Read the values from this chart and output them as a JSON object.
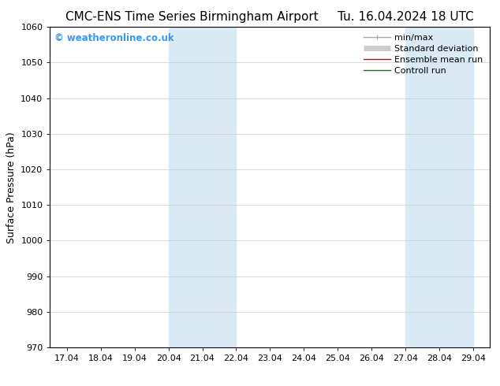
{
  "title_left": "CMC-ENS Time Series Birmingham Airport",
  "title_right": "Tu. 16.04.2024 18 UTC",
  "ylabel": "Surface Pressure (hPa)",
  "xlabel": "",
  "ylim": [
    970,
    1060
  ],
  "yticks": [
    970,
    980,
    990,
    1000,
    1010,
    1020,
    1030,
    1040,
    1050,
    1060
  ],
  "xtick_labels": [
    "17.04",
    "18.04",
    "19.04",
    "20.04",
    "21.04",
    "22.04",
    "23.04",
    "24.04",
    "25.04",
    "26.04",
    "27.04",
    "28.04",
    "29.04"
  ],
  "xtick_values": [
    0,
    1,
    2,
    3,
    4,
    5,
    6,
    7,
    8,
    9,
    10,
    11,
    12
  ],
  "xlim": [
    -0.5,
    12.5
  ],
  "shaded_regions": [
    {
      "x_start": 3,
      "x_end": 5,
      "color": "#daeaf5"
    },
    {
      "x_start": 10,
      "x_end": 12,
      "color": "#daeaf5"
    }
  ],
  "watermark": "© weatheronline.co.uk",
  "watermark_color": "#3399ff",
  "legend_entries": [
    {
      "label": "min/max",
      "color": "#aaaaaa",
      "linestyle": "-",
      "linewidth": 1.0
    },
    {
      "label": "Standard deviation",
      "color": "#cccccc",
      "linestyle": "-",
      "linewidth": 5
    },
    {
      "label": "Ensemble mean run",
      "color": "#dd0000",
      "linestyle": "-",
      "linewidth": 1.0
    },
    {
      "label": "Controll run",
      "color": "#008800",
      "linestyle": "-",
      "linewidth": 1.0
    }
  ],
  "background_color": "#ffffff",
  "grid_color": "#cccccc",
  "title_fontsize": 11,
  "tick_fontsize": 8,
  "ylabel_fontsize": 9,
  "legend_fontsize": 8
}
